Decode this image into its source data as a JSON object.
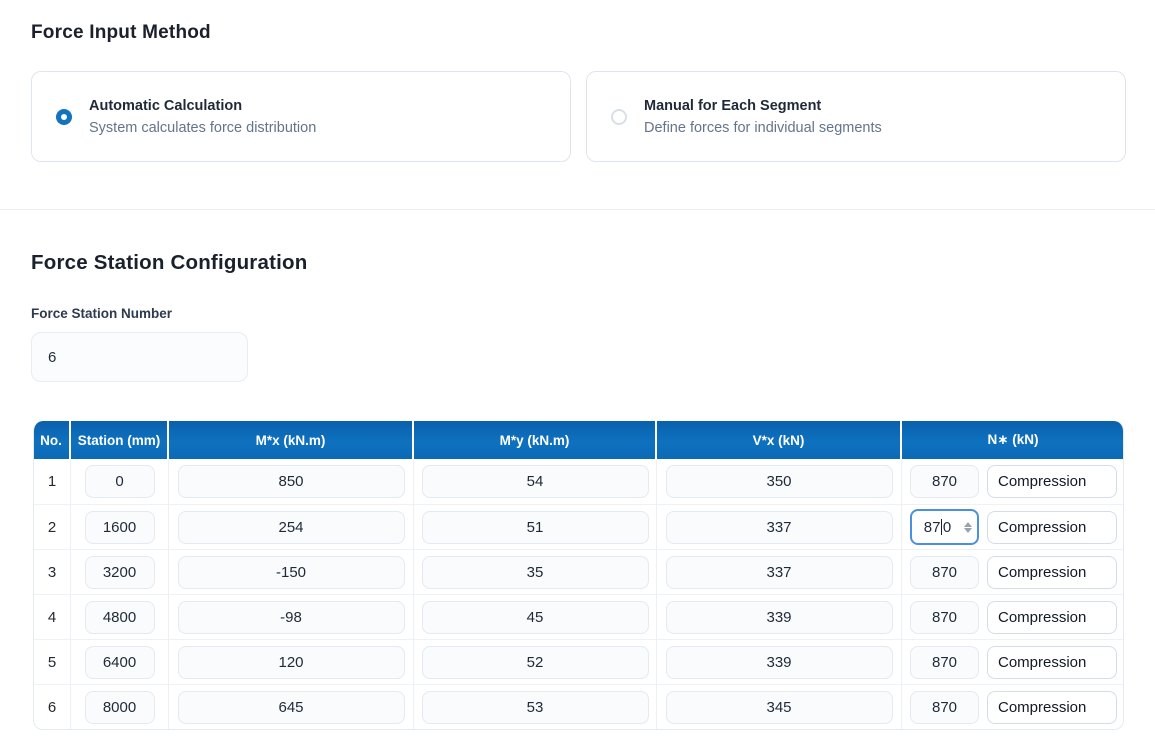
{
  "section_force_input": {
    "title": "Force Input Method",
    "options": [
      {
        "label": "Automatic Calculation",
        "description": "System calculates force distribution",
        "selected": true
      },
      {
        "label": "Manual for Each Segment",
        "description": "Define forces for individual segments",
        "selected": false
      }
    ]
  },
  "section_station": {
    "title": "Force Station Configuration",
    "field_label": "Force Station Number",
    "field_value": "6"
  },
  "table": {
    "headers": [
      "No.",
      "Station (mm)",
      "M*x (kN.m)",
      "M*y (kN.m)",
      "V*x (kN)",
      "N∗ (kN)"
    ],
    "rows": [
      {
        "no": "1",
        "station": "0",
        "mx": "850",
        "my": "54",
        "vx": "350",
        "n": "870",
        "n_type": "Compression"
      },
      {
        "no": "2",
        "station": "1600",
        "mx": "254",
        "my": "51",
        "vx": "337",
        "n": "870",
        "n_before_caret": "87",
        "n_after_caret": "0",
        "n_type": "Compression"
      },
      {
        "no": "3",
        "station": "3200",
        "mx": "-150",
        "my": "35",
        "vx": "337",
        "n": "870",
        "n_type": "Compression"
      },
      {
        "no": "4",
        "station": "4800",
        "mx": "-98",
        "my": "45",
        "vx": "339",
        "n": "870",
        "n_type": "Compression"
      },
      {
        "no": "5",
        "station": "6400",
        "mx": "120",
        "my": "52",
        "vx": "339",
        "n": "870",
        "n_type": "Compression"
      },
      {
        "no": "6",
        "station": "8000",
        "mx": "645",
        "my": "53",
        "vx": "345",
        "n": "870",
        "n_type": "Compression"
      }
    ]
  },
  "colors": {
    "header_blue": "#0e71bf",
    "radio_selected_blue": "#1273bf",
    "focus_border_blue": "#4a90e2",
    "subtitle_gray": "#64748b"
  }
}
